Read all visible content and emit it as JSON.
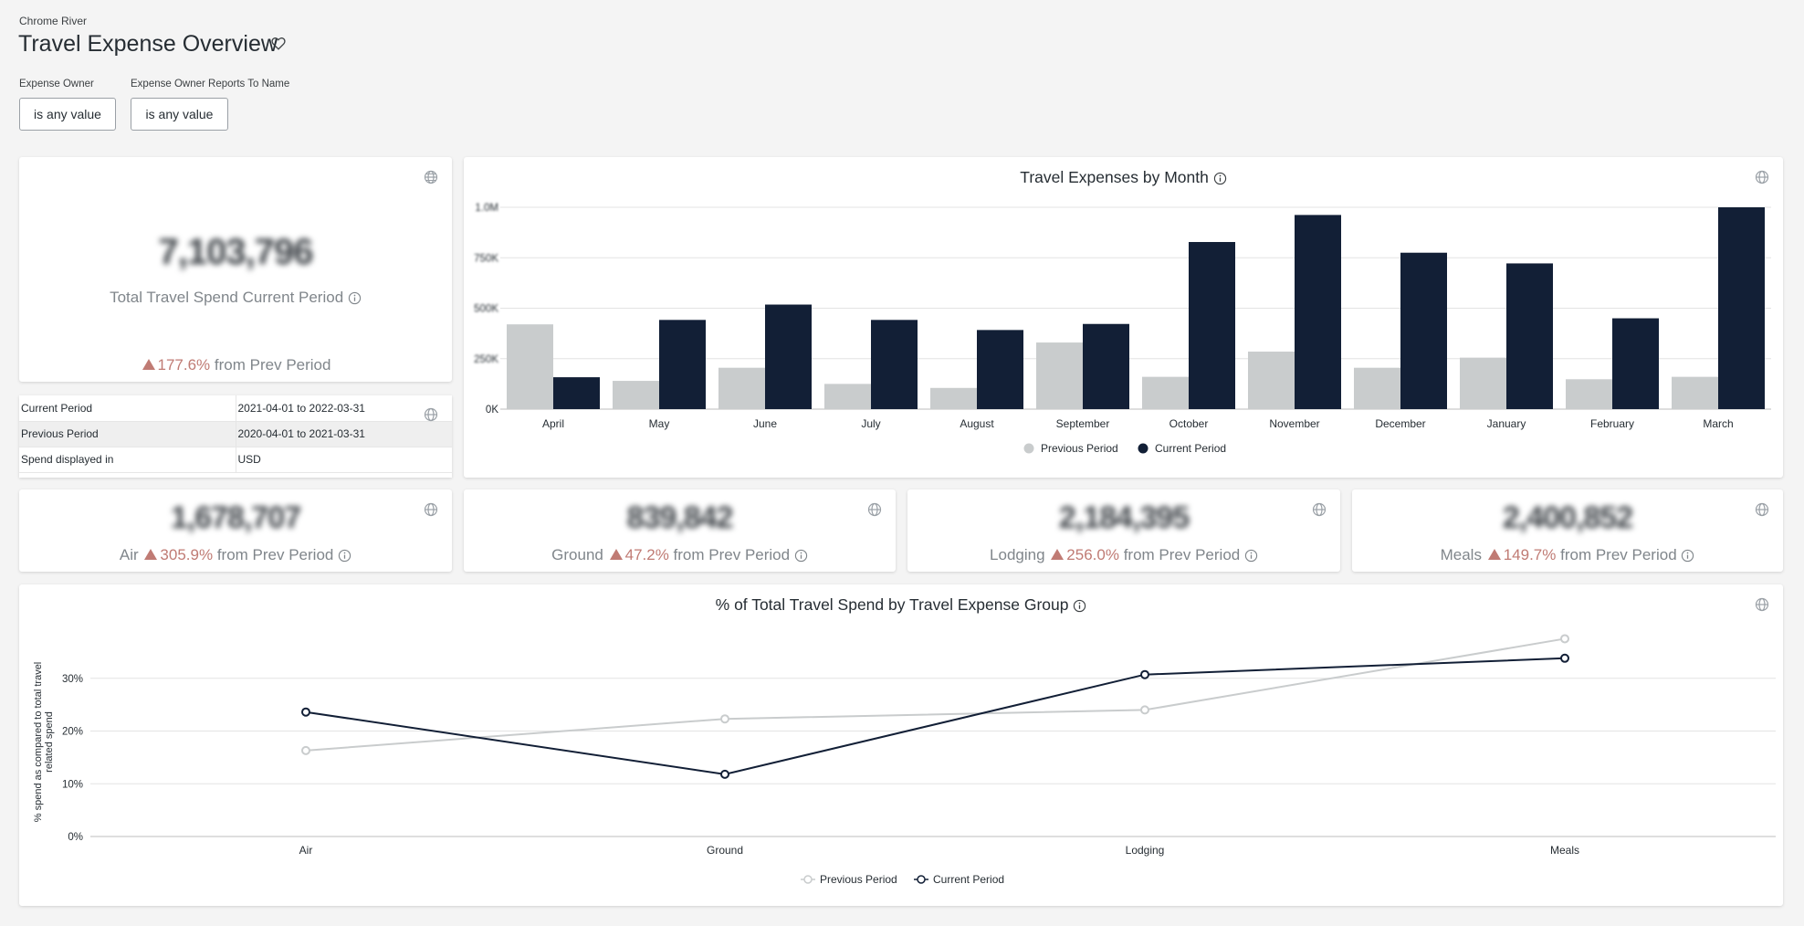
{
  "header": {
    "app_name": "Chrome River",
    "title": "Travel Expense Overview",
    "favorite_icon": "heart-icon"
  },
  "filters": [
    {
      "label": "Expense Owner",
      "value": "is any value"
    },
    {
      "label": "Expense Owner Reports To Name",
      "value": "is any value"
    }
  ],
  "total_card": {
    "value": "7,103,796",
    "label": "Total Travel Spend Current Period",
    "change": "177.6%",
    "change_suffix": "from Prev Period"
  },
  "period_table": [
    {
      "label": "Current Period",
      "value": "2021-04-01 to 2022-03-31"
    },
    {
      "label": "Previous Period",
      "value": "2020-04-01 to 2021-03-31"
    },
    {
      "label": "Spend displayed in",
      "value": "USD"
    }
  ],
  "kpis": [
    {
      "name": "Air",
      "value": "1,678,707",
      "change": "305.9%",
      "suffix": "from Prev Period"
    },
    {
      "name": "Ground",
      "value": "839,842",
      "change": "47.2%",
      "suffix": "from Prev Period"
    },
    {
      "name": "Lodging",
      "value": "2,184,395",
      "change": "256.0%",
      "suffix": "from Prev Period"
    },
    {
      "name": "Meals",
      "value": "2,400,852",
      "change": "149.7%",
      "suffix": "from Prev Period"
    }
  ],
  "colors": {
    "previous": "#c9cccd",
    "current": "#121f36",
    "up": "#c07b74"
  },
  "chart_data": [
    {
      "type": "bar",
      "title": "Travel Expenses by Month",
      "categories": [
        "April",
        "May",
        "June",
        "July",
        "August",
        "September",
        "October",
        "November",
        "December",
        "January",
        "February",
        "March"
      ],
      "series": [
        {
          "name": "Previous Period",
          "values": [
            420000,
            140000,
            205000,
            125000,
            105000,
            330000,
            160000,
            285000,
            205000,
            255000,
            148000,
            160000
          ]
        },
        {
          "name": "Current Period",
          "values": [
            158000,
            442000,
            518000,
            442000,
            392000,
            422000,
            828000,
            962000,
            775000,
            722000,
            450000,
            1000000
          ]
        }
      ],
      "y_ticks": [
        "0K",
        "250K",
        "500K",
        "750K",
        "1.0M"
      ],
      "ylim": [
        0,
        1000000
      ],
      "legend": "bottom",
      "grid": true
    },
    {
      "type": "line",
      "title": "% of Total Travel Spend by Travel Expense Group",
      "categories": [
        "Air",
        "Ground",
        "Lodging",
        "Meals"
      ],
      "series": [
        {
          "name": "Previous Period",
          "values": [
            16.3,
            22.3,
            24.0,
            37.5
          ]
        },
        {
          "name": "Current Period",
          "values": [
            23.6,
            11.8,
            30.7,
            33.8
          ]
        }
      ],
      "ylabel": "% spend as compared to total travel related spend",
      "y_ticks": [
        "0%",
        "10%",
        "20%",
        "30%"
      ],
      "ylim": [
        0,
        40
      ],
      "legend": "bottom",
      "grid": true
    }
  ]
}
